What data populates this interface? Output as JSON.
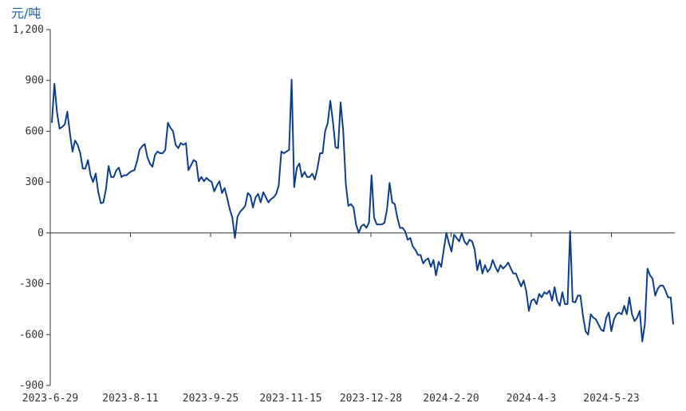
{
  "unit_label": "元/吨",
  "colors": {
    "line": "#0d3e8a",
    "axis": "#333333",
    "unit": "#1f5fa8"
  },
  "chart_data": {
    "type": "line",
    "ylabel": "元/吨",
    "ylim": [
      -900,
      1200
    ],
    "yticks": [
      -900,
      -600,
      -300,
      0,
      300,
      600,
      900,
      1200
    ],
    "ytick_labels": [
      "-900",
      "-600",
      "-300",
      "0",
      "300",
      "600",
      "900",
      "1,200"
    ],
    "xtick_labels": [
      "2023-6-29",
      "2023-8-11",
      "2023-9-25",
      "2023-11-15",
      "2023-12-28",
      "2024-2-20",
      "2024-4-3",
      "2024-5-23"
    ],
    "grid": false,
    "legend": "none",
    "series": [
      {
        "values": [
          650,
          880,
          710,
          615,
          625,
          640,
          715,
          590,
          480,
          545,
          520,
          470,
          380,
          380,
          430,
          340,
          300,
          350,
          240,
          175,
          180,
          260,
          395,
          330,
          330,
          370,
          385,
          330,
          340,
          340,
          355,
          365,
          370,
          420,
          490,
          510,
          525,
          450,
          410,
          390,
          460,
          480,
          470,
          470,
          490,
          650,
          620,
          600,
          520,
          500,
          530,
          520,
          530,
          370,
          400,
          430,
          420,
          305,
          330,
          305,
          325,
          310,
          300,
          245,
          280,
          305,
          235,
          265,
          205,
          140,
          90,
          -30,
          95,
          125,
          140,
          160,
          235,
          220,
          150,
          210,
          230,
          180,
          240,
          210,
          180,
          200,
          210,
          230,
          280,
          480,
          470,
          480,
          490,
          905,
          270,
          385,
          410,
          330,
          360,
          330,
          330,
          350,
          315,
          380,
          470,
          470,
          600,
          650,
          780,
          660,
          505,
          500,
          770,
          600,
          290,
          160,
          170,
          150,
          50,
          0,
          40,
          50,
          30,
          60,
          340,
          90,
          50,
          50,
          50,
          60,
          140,
          295,
          180,
          170,
          90,
          30,
          30,
          10,
          -40,
          -30,
          -80,
          -100,
          -130,
          -130,
          -180,
          -160,
          -150,
          -200,
          -160,
          -250,
          -170,
          -200,
          -100,
          0,
          -60,
          -110,
          -10,
          -30,
          -50,
          0,
          -50,
          -70,
          -40,
          -50,
          -100,
          -220,
          -160,
          -240,
          -190,
          -230,
          -210,
          -160,
          -200,
          -230,
          -190,
          -210,
          -195,
          -175,
          -210,
          -240,
          -240,
          -280,
          -315,
          -280,
          -345,
          -460,
          -400,
          -390,
          -420,
          -360,
          -380,
          -350,
          -360,
          -340,
          -400,
          -320,
          -400,
          -430,
          -350,
          -420,
          -420,
          10,
          -405,
          -410,
          -370,
          -370,
          -490,
          -580,
          -600,
          -480,
          -500,
          -510,
          -540,
          -570,
          -580,
          -500,
          -470,
          -580,
          -510,
          -480,
          -470,
          -480,
          -430,
          -480,
          -380,
          -480,
          -520,
          -500,
          -460,
          -640,
          -540,
          -210,
          -250,
          -270,
          -370,
          -330,
          -310,
          -310,
          -340,
          -380,
          -380,
          -540
        ]
      }
    ]
  }
}
